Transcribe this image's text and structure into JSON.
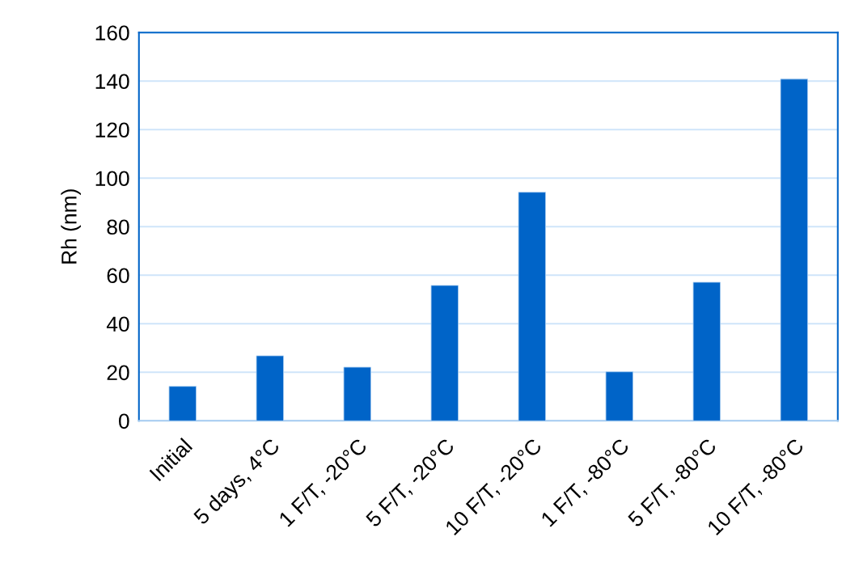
{
  "chart_data": {
    "type": "bar",
    "ylabel": "Rh (nm)",
    "categories": [
      "Initial",
      "5 days, 4°C",
      "1 F/T, -20°C",
      "5 F/T, -20°C",
      "10 F/T, -20°C",
      "1 F/T, -80°C",
      "5 F/T, -80°C",
      "10 F/T, -80°C"
    ],
    "values": [
      14.2,
      26.8,
      22.1,
      55.8,
      94.2,
      20.2,
      57.1,
      140.8
    ],
    "color": "#0064c8",
    "ylim": [
      0,
      160
    ],
    "yticks": [
      0,
      20,
      40,
      60,
      80,
      100,
      120,
      140,
      160
    ],
    "grid": "y"
  }
}
